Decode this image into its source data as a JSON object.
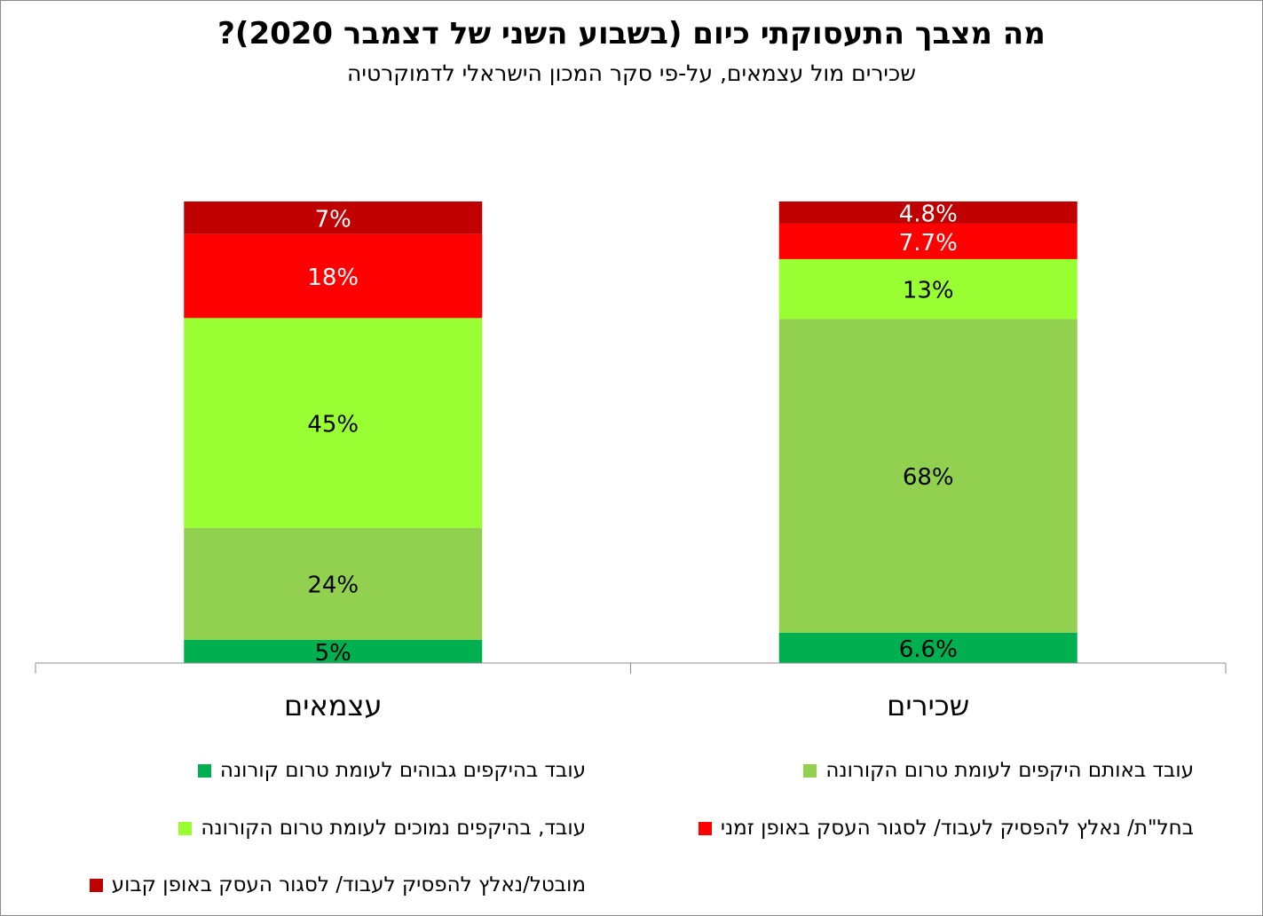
{
  "chart_data": {
    "type": "bar",
    "stacked": true,
    "title": "מה מצבך התעסוקתי כיום (בשבוע השני של דצמבר 2020)?",
    "subtitle": "שכירים מול עצמאים, על-פי סקר המכון הישראלי לדמוקרטיה",
    "categories": [
      "שכירים",
      "עצמאים"
    ],
    "ylim": [
      0,
      100
    ],
    "grid": false,
    "legend_position": "bottom",
    "series": [
      {
        "name": "עובד בהיקפים גבוהים לעומת טרום קורונה",
        "color": "#00b050",
        "values": [
          6.6,
          5
        ],
        "labels": [
          "6.6%",
          "5%"
        ],
        "label_color": "#000000"
      },
      {
        "name": "עובד באותם היקפים לעומת טרום הקורונה",
        "color": "#92d050",
        "values": [
          68,
          24
        ],
        "labels": [
          "68%",
          "24%"
        ],
        "label_color": "#000000"
      },
      {
        "name": "עובד, בהיקפים נמוכים לעומת טרום הקורונה",
        "color": "#99ff33",
        "values": [
          13,
          45
        ],
        "labels": [
          "13%",
          "45%"
        ],
        "label_color": "#000000"
      },
      {
        "name": "בחל\"ת/ נאלץ להפסיק לעבוד/ לסגור העסק באופן זמני",
        "color": "#ff0000",
        "values": [
          7.7,
          18
        ],
        "labels": [
          "7.7%",
          "18%"
        ],
        "label_color": "#ffffff"
      },
      {
        "name": "מובטל/נאלץ להפסיק לעבוד/ לסגור העסק באופן קבוע",
        "color": "#c00000",
        "values": [
          4.8,
          7
        ],
        "labels": [
          "4.8%",
          "7%"
        ],
        "label_color": "#ffffff"
      }
    ]
  }
}
